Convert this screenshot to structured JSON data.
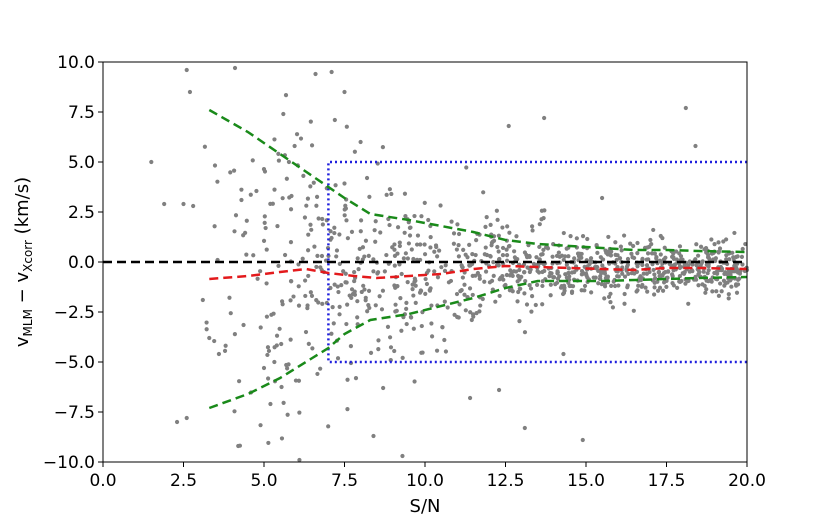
{
  "chart_data": {
    "type": "scatter",
    "xlabel": "S/N",
    "ylabel": {
      "v1": "v",
      "s1": "MLM",
      "minus": " − ",
      "v2": "v",
      "s2": "Xcorr",
      "unit": " (km/s)"
    },
    "xlim": [
      0.0,
      20.0
    ],
    "ylim": [
      -10.0,
      10.0
    ],
    "xticks": [
      "0.0",
      "2.5",
      "5.0",
      "7.5",
      "10.0",
      "12.5",
      "15.0",
      "17.5",
      "20.0"
    ],
    "yticks": [
      "10.0",
      "7.5",
      "5.0",
      "2.5",
      "0.0",
      "−2.5",
      "−5.0",
      "−7.5",
      "−10.0"
    ],
    "grid": false,
    "colors": {
      "points": "#808080",
      "zero_line": "#000000",
      "median": "#e31a1c",
      "envelope": "#1a8a1a",
      "box": "#1f1fdd"
    },
    "zero_line": {
      "x": [
        0.0,
        20.0
      ],
      "y": [
        0.0,
        0.0
      ]
    },
    "median_line": {
      "x": [
        3.3,
        4.5,
        5.5,
        6.3,
        7.0,
        7.8,
        8.5,
        9.5,
        10.5,
        11.5,
        12.5,
        13.5,
        14.5,
        15.5,
        16.5,
        17.5,
        18.5,
        20.0
      ],
      "y": [
        -0.85,
        -0.7,
        -0.5,
        -0.35,
        -0.55,
        -0.7,
        -0.8,
        -0.7,
        -0.6,
        -0.35,
        -0.2,
        -0.25,
        -0.3,
        -0.35,
        -0.4,
        -0.3,
        -0.3,
        -0.35
      ]
    },
    "upper_envelope": {
      "x": [
        3.3,
        4.5,
        5.5,
        6.5,
        7.5,
        8.3,
        9.5,
        10.5,
        11.5,
        12.5,
        13.5,
        14.5,
        15.5,
        16.5,
        17.5,
        18.5,
        20.0
      ],
      "y": [
        7.6,
        6.5,
        5.4,
        4.3,
        3.2,
        2.4,
        2.1,
        1.8,
        1.5,
        1.1,
        0.9,
        0.8,
        0.7,
        0.6,
        0.6,
        0.55,
        0.5
      ]
    },
    "lower_envelope": {
      "x": [
        3.3,
        4.5,
        5.5,
        6.5,
        7.0,
        7.5,
        8.3,
        9.5,
        10.5,
        11.5,
        12.5,
        13.5,
        14.5,
        15.5,
        16.5,
        17.5,
        18.5,
        20.0
      ],
      "y": [
        -7.3,
        -6.6,
        -5.8,
        -4.8,
        -4.3,
        -3.6,
        -2.9,
        -2.6,
        -2.2,
        -1.8,
        -1.3,
        -0.95,
        -0.95,
        -0.95,
        -0.9,
        -0.85,
        -0.8,
        -0.75
      ]
    },
    "selection_box": {
      "x": [
        7.0,
        20.0
      ],
      "y": [
        -5.0,
        5.0
      ]
    },
    "points": {
      "count": 1100,
      "x": [
        1.5,
        1.9,
        2.5,
        2.6,
        2.7,
        2.6,
        2.3,
        2.8,
        3.1,
        3.3,
        3.6,
        4.2,
        4.1,
        4.3,
        5.0,
        5.2,
        5.6,
        6.1,
        6.6,
        6.8,
        7.1,
        7.2,
        7.5,
        8.0,
        8.2,
        8.4,
        8.7,
        9.3,
        10.1,
        10.6,
        11.4,
        12.3,
        12.6,
        13.1,
        13.7,
        14.3,
        14.9,
        15.5,
        16.2,
        17.0,
        18.1,
        18.4,
        19.6,
        20.0
      ],
      "y": [
        5.0,
        2.9,
        2.9,
        9.6,
        8.5,
        -7.8,
        -8.0,
        2.8,
        -1.9,
        -3.8,
        -4.6,
        -9.2,
        9.7,
        3.1,
        -5.3,
        -7.1,
        7.4,
        -9.9,
        9.4,
        0.3,
        9.5,
        7.1,
        8.5,
        6.0,
        4.2,
        -8.7,
        -6.3,
        -9.7,
        2.1,
        -3.9,
        -6.8,
        -6.4,
        6.8,
        -8.3,
        7.2,
        -4.6,
        -8.9,
        3.2,
        -1.6,
        1.1,
        7.7,
        5.8,
        -0.3,
        -0.4
      ]
    }
  }
}
